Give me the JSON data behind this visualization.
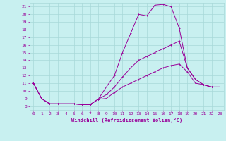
{
  "title": "",
  "xlabel": "Windchill (Refroidissement éolien,°C)",
  "background_color": "#c8f0f0",
  "grid_color": "#a8d8d8",
  "line_color": "#990099",
  "xlim": [
    -0.5,
    23.5
  ],
  "ylim": [
    7.5,
    21.5
  ],
  "xticks": [
    0,
    1,
    2,
    3,
    4,
    5,
    6,
    7,
    8,
    9,
    10,
    11,
    12,
    13,
    14,
    15,
    16,
    17,
    18,
    19,
    20,
    21,
    22,
    23
  ],
  "yticks": [
    8,
    9,
    10,
    11,
    12,
    13,
    14,
    15,
    16,
    17,
    18,
    19,
    20,
    21
  ],
  "line1_x": [
    0,
    1,
    2,
    3,
    4,
    5,
    6,
    7,
    8,
    9,
    10,
    11,
    12,
    13,
    14,
    15,
    16,
    17,
    18,
    19,
    20,
    21,
    22,
    23
  ],
  "line1_y": [
    11,
    9,
    8.3,
    8.3,
    8.3,
    8.3,
    8.2,
    8.2,
    8.9,
    10.5,
    12.0,
    15.0,
    17.5,
    20.0,
    19.8,
    21.2,
    21.3,
    21.0,
    18.2,
    13.0,
    11.5,
    10.8,
    10.5,
    10.5
  ],
  "line2_x": [
    0,
    1,
    2,
    3,
    4,
    5,
    6,
    7,
    8,
    9,
    10,
    11,
    12,
    13,
    14,
    15,
    16,
    17,
    18,
    19,
    20,
    21,
    22,
    23
  ],
  "line2_y": [
    11,
    9,
    8.3,
    8.3,
    8.3,
    8.3,
    8.2,
    8.2,
    8.9,
    9.5,
    10.5,
    11.8,
    13.0,
    14.0,
    14.5,
    15.0,
    15.5,
    16.0,
    16.5,
    13.0,
    11.5,
    10.8,
    10.5,
    10.5
  ],
  "line3_x": [
    0,
    1,
    2,
    3,
    4,
    5,
    6,
    7,
    8,
    9,
    10,
    11,
    12,
    13,
    14,
    15,
    16,
    17,
    18,
    19,
    20,
    21,
    22,
    23
  ],
  "line3_y": [
    11,
    9,
    8.3,
    8.3,
    8.3,
    8.3,
    8.2,
    8.2,
    8.9,
    9.0,
    9.8,
    10.5,
    11.0,
    11.5,
    12.0,
    12.5,
    13.0,
    13.3,
    13.5,
    12.5,
    11.0,
    10.8,
    10.5,
    10.5
  ],
  "tick_fontsize": 4.5,
  "xlabel_fontsize": 5.0,
  "marker_size": 2.0,
  "line_width": 0.7
}
